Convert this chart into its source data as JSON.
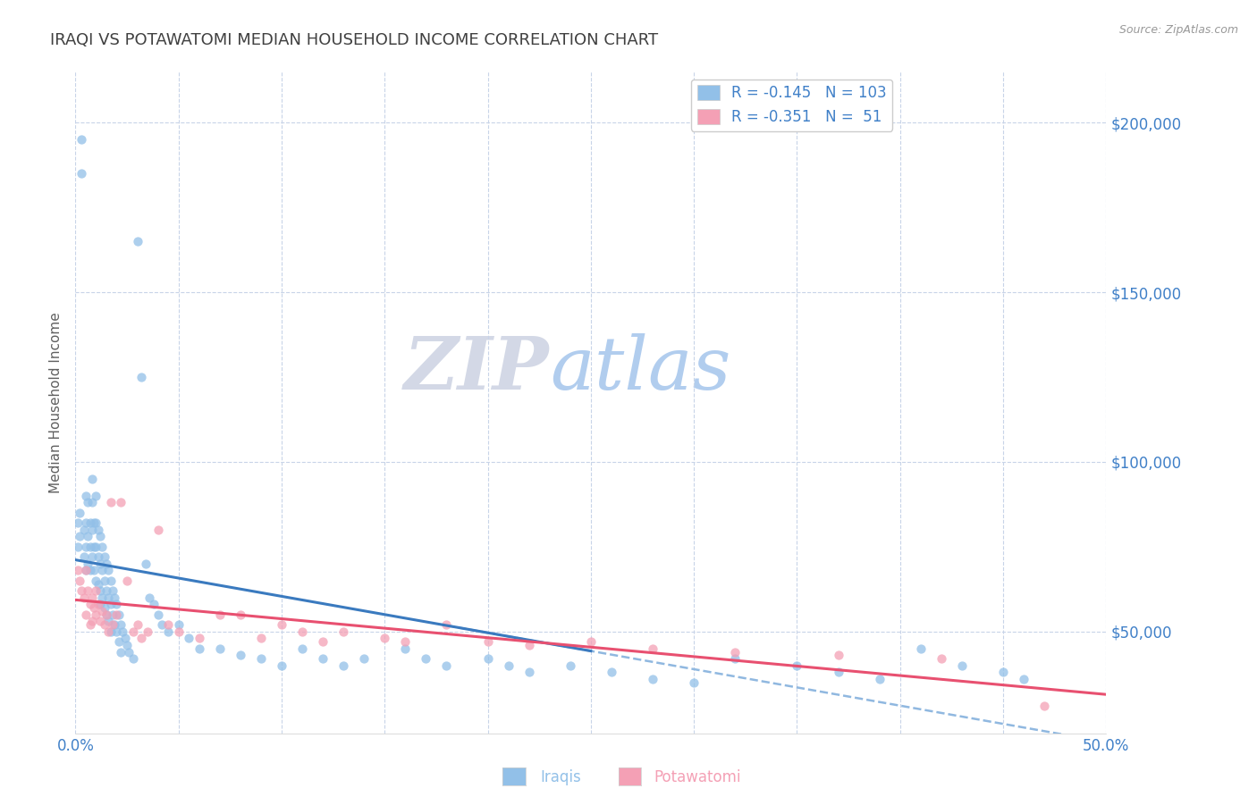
{
  "title": "IRAQI VS POTAWATOMI MEDIAN HOUSEHOLD INCOME CORRELATION CHART",
  "source_text": "Source: ZipAtlas.com",
  "ylabel": "Median Household Income",
  "xlim": [
    0.0,
    0.5
  ],
  "ylim": [
    20000,
    215000
  ],
  "xticks": [
    0.0,
    0.05,
    0.1,
    0.15,
    0.2,
    0.25,
    0.3,
    0.35,
    0.4,
    0.45,
    0.5
  ],
  "xtick_labels": [
    "0.0%",
    "",
    "",
    "",
    "",
    "",
    "",
    "",
    "",
    "",
    "50.0%"
  ],
  "yticks": [
    50000,
    100000,
    150000,
    200000
  ],
  "ytick_labels": [
    "$50,000",
    "$100,000",
    "$150,000",
    "$200,000"
  ],
  "blue_color": "#92c0e8",
  "pink_color": "#f4a0b5",
  "blue_line_color": "#3a7abf",
  "pink_line_color": "#e85070",
  "dashed_line_color": "#90b8e0",
  "background_color": "#ffffff",
  "grid_color": "#c8d4e8",
  "title_color": "#404040",
  "axis_label_color": "#606060",
  "tick_label_color": "#4080c8",
  "watermark_zip_color": "#c8cfe0",
  "watermark_atlas_color": "#90b8e8",
  "iraqis_x": [
    0.001,
    0.001,
    0.002,
    0.002,
    0.003,
    0.003,
    0.004,
    0.004,
    0.005,
    0.005,
    0.005,
    0.005,
    0.006,
    0.006,
    0.006,
    0.007,
    0.007,
    0.007,
    0.008,
    0.008,
    0.008,
    0.008,
    0.009,
    0.009,
    0.009,
    0.01,
    0.01,
    0.01,
    0.01,
    0.011,
    0.011,
    0.011,
    0.012,
    0.012,
    0.012,
    0.012,
    0.013,
    0.013,
    0.013,
    0.014,
    0.014,
    0.014,
    0.015,
    0.015,
    0.015,
    0.016,
    0.016,
    0.016,
    0.017,
    0.017,
    0.017,
    0.018,
    0.018,
    0.019,
    0.019,
    0.02,
    0.02,
    0.021,
    0.021,
    0.022,
    0.022,
    0.023,
    0.024,
    0.025,
    0.026,
    0.028,
    0.03,
    0.032,
    0.034,
    0.036,
    0.038,
    0.04,
    0.042,
    0.045,
    0.05,
    0.055,
    0.06,
    0.07,
    0.08,
    0.09,
    0.1,
    0.11,
    0.12,
    0.13,
    0.14,
    0.16,
    0.17,
    0.18,
    0.2,
    0.21,
    0.22,
    0.24,
    0.26,
    0.28,
    0.3,
    0.32,
    0.35,
    0.37,
    0.39,
    0.41,
    0.43,
    0.45,
    0.46
  ],
  "iraqis_y": [
    82000,
    75000,
    85000,
    78000,
    185000,
    195000,
    80000,
    72000,
    90000,
    82000,
    75000,
    68000,
    88000,
    78000,
    70000,
    82000,
    75000,
    68000,
    95000,
    88000,
    80000,
    72000,
    82000,
    75000,
    68000,
    90000,
    82000,
    75000,
    65000,
    80000,
    72000,
    64000,
    78000,
    70000,
    62000,
    58000,
    75000,
    68000,
    60000,
    72000,
    65000,
    57000,
    70000,
    62000,
    55000,
    68000,
    60000,
    53000,
    65000,
    58000,
    50000,
    62000,
    55000,
    60000,
    52000,
    58000,
    50000,
    55000,
    47000,
    52000,
    44000,
    50000,
    48000,
    46000,
    44000,
    42000,
    165000,
    125000,
    70000,
    60000,
    58000,
    55000,
    52000,
    50000,
    52000,
    48000,
    45000,
    45000,
    43000,
    42000,
    40000,
    45000,
    42000,
    40000,
    42000,
    45000,
    42000,
    40000,
    42000,
    40000,
    38000,
    40000,
    38000,
    36000,
    35000,
    42000,
    40000,
    38000,
    36000,
    45000,
    40000,
    38000,
    36000
  ],
  "potawatomi_x": [
    0.001,
    0.002,
    0.003,
    0.004,
    0.005,
    0.005,
    0.006,
    0.007,
    0.007,
    0.008,
    0.008,
    0.009,
    0.01,
    0.01,
    0.011,
    0.012,
    0.013,
    0.014,
    0.015,
    0.016,
    0.017,
    0.018,
    0.02,
    0.022,
    0.025,
    0.028,
    0.03,
    0.032,
    0.035,
    0.04,
    0.045,
    0.05,
    0.06,
    0.07,
    0.08,
    0.09,
    0.1,
    0.11,
    0.12,
    0.13,
    0.15,
    0.16,
    0.18,
    0.2,
    0.22,
    0.25,
    0.28,
    0.32,
    0.37,
    0.42,
    0.47
  ],
  "potawatomi_y": [
    68000,
    65000,
    62000,
    60000,
    68000,
    55000,
    62000,
    58000,
    52000,
    60000,
    53000,
    57000,
    62000,
    55000,
    58000,
    53000,
    56000,
    52000,
    55000,
    50000,
    88000,
    52000,
    55000,
    88000,
    65000,
    50000,
    52000,
    48000,
    50000,
    80000,
    52000,
    50000,
    48000,
    55000,
    55000,
    48000,
    52000,
    50000,
    47000,
    50000,
    48000,
    47000,
    52000,
    47000,
    46000,
    47000,
    45000,
    44000,
    43000,
    42000,
    28000
  ]
}
